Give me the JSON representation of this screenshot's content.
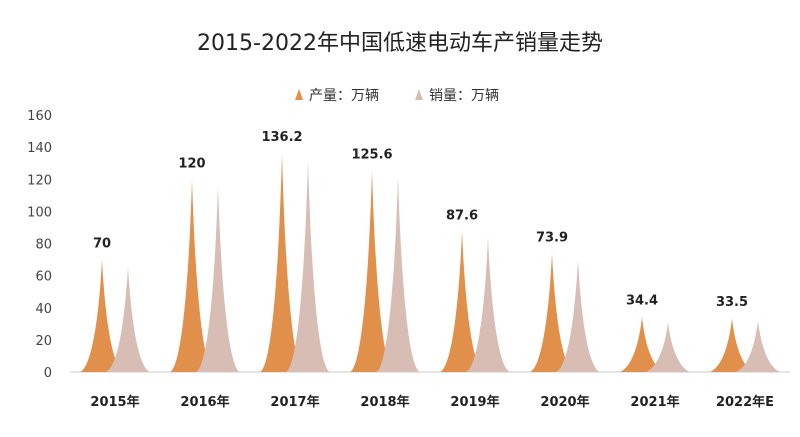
{
  "chart_data": {
    "type": "area",
    "title": "2015-2022年中国低速电动车产销量走势",
    "categories": [
      "2015年",
      "2016年",
      "2017年",
      "2018年",
      "2019年",
      "2020年",
      "2021年",
      "2022年E"
    ],
    "series": [
      {
        "name": "产量：万辆",
        "color": "#E0904A",
        "values": [
          70,
          120,
          136.2,
          125.6,
          87.6,
          73.9,
          34.4,
          33.5
        ]
      },
      {
        "name": "销量：万辆",
        "color": "#D8BDB5",
        "values": [
          66,
          116,
          132,
          122,
          84,
          70,
          31,
          32
        ]
      }
    ],
    "data_labels": [
      "70",
      "120",
      "136.2",
      "125.6",
      "87.6",
      "73.9",
      "34.4",
      "33.5"
    ],
    "ylim": [
      0,
      160
    ],
    "yticks": [
      0,
      20,
      40,
      60,
      80,
      100,
      120,
      140,
      160
    ],
    "grid": false,
    "legend": "top-center"
  }
}
